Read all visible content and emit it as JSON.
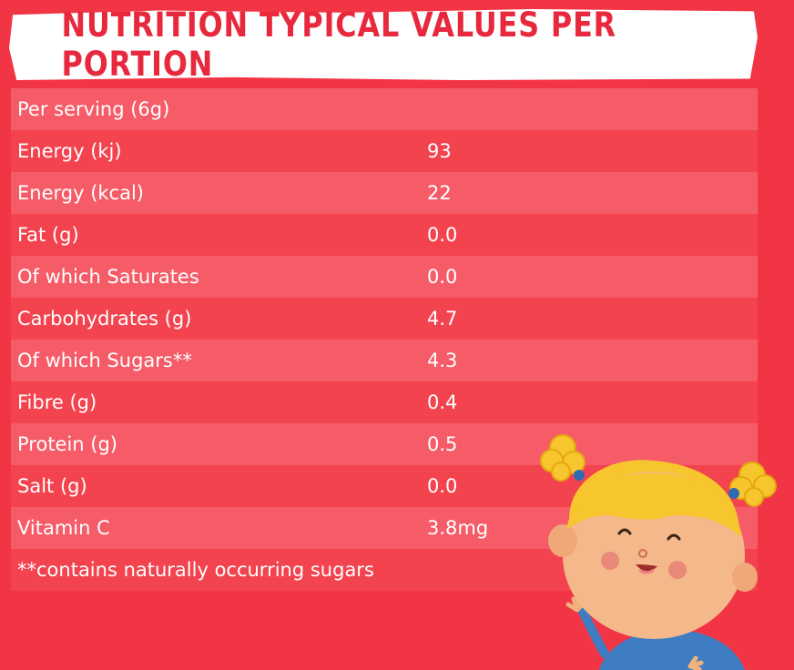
{
  "title": "NUTRITION TYPICAL VALUES PER PORTION",
  "header_row": "Per serving (6g)",
  "rows": [
    {
      "label": "Energy (kj)",
      "value": "93"
    },
    {
      "label": "Energy (kcal)",
      "value": "22"
    },
    {
      "label": "Fat (g)",
      "value": "0.0"
    },
    {
      "label": "Of which Saturates",
      "value": "0.0"
    },
    {
      "label": "Carbohydrates (g)",
      "value": "4.7"
    },
    {
      "label": "Of which Sugars**",
      "value": "4.3"
    },
    {
      "label": "Fibre (g)",
      "value": "0.4"
    },
    {
      "label": "Protein (g)",
      "value": "0.5"
    },
    {
      "label": "Salt (g)",
      "value": "0.0"
    },
    {
      "label": "Vitamin C",
      "value": "3.8mg"
    }
  ],
  "footnote": "**contains naturally occurring sugars",
  "colors": {
    "background": "#F23545",
    "row_light": "#F55C68",
    "row_dark": "#F2434F",
    "title": "#E8283C",
    "banner": "#FFFFFF",
    "text": "#FFFFFF"
  }
}
